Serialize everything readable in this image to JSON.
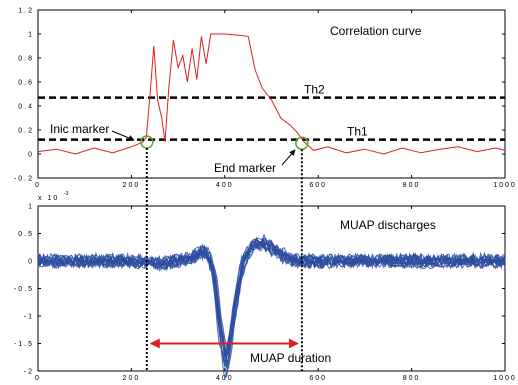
{
  "chart_data": [
    {
      "type": "line",
      "annotation_title": "Correlation curve",
      "xlim": [
        0,
        1000
      ],
      "ylim": [
        -0.2,
        1.2
      ],
      "x_ticks": [
        "0",
        "200",
        "400",
        "600",
        "800",
        "1000"
      ],
      "y_ticks": [
        "-0.2",
        "0",
        "0.2",
        "0.4",
        "0.6",
        "0.8",
        "1",
        "1.2"
      ],
      "series_color": "#e02020",
      "points": [
        [
          0,
          0.02
        ],
        [
          40,
          0.04
        ],
        [
          80,
          0.0
        ],
        [
          120,
          0.05
        ],
        [
          160,
          0.01
        ],
        [
          200,
          0.06
        ],
        [
          225,
          0.1
        ],
        [
          232,
          0.14
        ],
        [
          240,
          0.5
        ],
        [
          248,
          0.9
        ],
        [
          256,
          0.45
        ],
        [
          265,
          0.3
        ],
        [
          272,
          0.1
        ],
        [
          280,
          0.55
        ],
        [
          290,
          0.95
        ],
        [
          300,
          0.72
        ],
        [
          310,
          0.82
        ],
        [
          320,
          0.6
        ],
        [
          330,
          0.88
        ],
        [
          340,
          0.62
        ],
        [
          350,
          0.98
        ],
        [
          360,
          0.75
        ],
        [
          370,
          1.0
        ],
        [
          400,
          1.0
        ],
        [
          430,
          0.99
        ],
        [
          450,
          0.98
        ],
        [
          465,
          0.7
        ],
        [
          480,
          0.55
        ],
        [
          500,
          0.45
        ],
        [
          520,
          0.3
        ],
        [
          540,
          0.24
        ],
        [
          555,
          0.18
        ],
        [
          570,
          0.1
        ],
        [
          590,
          0.03
        ],
        [
          620,
          0.06
        ],
        [
          660,
          0.01
        ],
        [
          700,
          0.04
        ],
        [
          740,
          0.0
        ],
        [
          780,
          0.05
        ],
        [
          820,
          0.01
        ],
        [
          860,
          0.04
        ],
        [
          900,
          0.06
        ],
        [
          940,
          0.02
        ],
        [
          980,
          0.05
        ],
        [
          1000,
          0.03
        ]
      ],
      "thresholds": [
        {
          "name": "Th2",
          "y": 0.47
        },
        {
          "name": "Th1",
          "y": 0.12
        }
      ],
      "markers": [
        {
          "name": "Inic marker",
          "x": 233,
          "y": 0.1,
          "color": "#55aa22"
        },
        {
          "name": "End marker",
          "x": 565,
          "y": 0.09,
          "color": "#55aa22"
        }
      ]
    },
    {
      "type": "line",
      "annotation_title": "MUAP discharges",
      "y_multiplier": "x 10",
      "y_multiplier_exponent": "-3",
      "xlim": [
        0,
        1000
      ],
      "ylim": [
        -2,
        1
      ],
      "x_ticks": [
        "0",
        "200",
        "400",
        "600",
        "800",
        "1000"
      ],
      "y_ticks": [
        "-2",
        "-1.5",
        "-1",
        "-0.5",
        "0",
        "0.5",
        "1"
      ],
      "series_color": "#2d4ea0",
      "points": [
        [
          0,
          0.0
        ],
        [
          100,
          0.0
        ],
        [
          200,
          0.0
        ],
        [
          260,
          -0.05
        ],
        [
          300,
          0.0
        ],
        [
          330,
          0.05
        ],
        [
          350,
          0.17
        ],
        [
          360,
          0.15
        ],
        [
          370,
          0.0
        ],
        [
          380,
          -0.4
        ],
        [
          390,
          -1.2
        ],
        [
          398,
          -1.6
        ],
        [
          404,
          -1.88
        ],
        [
          410,
          -1.6
        ],
        [
          420,
          -1.0
        ],
        [
          440,
          0.0
        ],
        [
          460,
          0.28
        ],
        [
          480,
          0.35
        ],
        [
          500,
          0.25
        ],
        [
          530,
          0.08
        ],
        [
          560,
          0.0
        ],
        [
          600,
          0.0
        ],
        [
          700,
          0.0
        ],
        [
          800,
          0.0
        ],
        [
          900,
          0.0
        ],
        [
          1000,
          0.0
        ]
      ],
      "duration_label": "MUAP duration",
      "duration_start": 233,
      "duration_end": 565,
      "duration_color": "#e02020"
    }
  ]
}
